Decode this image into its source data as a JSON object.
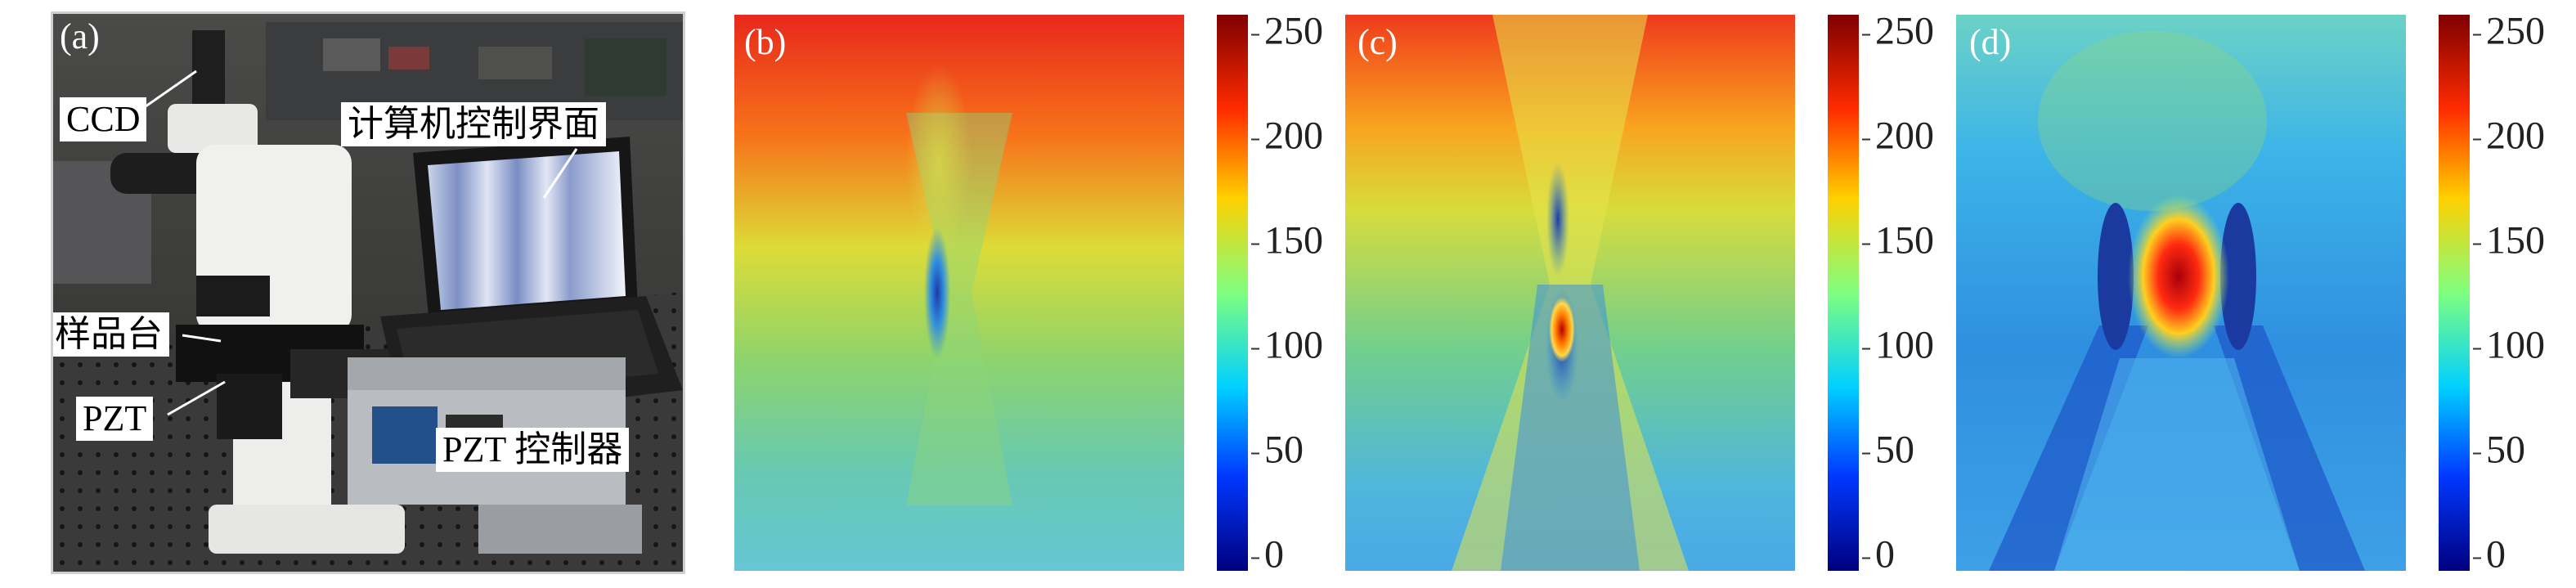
{
  "panel_a": {
    "label": "(a)",
    "annotations": {
      "ccd": "CCD",
      "computer": "计算机控制界面",
      "stage": "样品台",
      "pzt": "PZT",
      "pzt_controller": "PZT 控制器"
    }
  },
  "panels": [
    {
      "label": "(b)"
    },
    {
      "label": "(c)"
    },
    {
      "label": "(d)"
    }
  ],
  "colorbar": {
    "ticks": [
      "250",
      "200",
      "150",
      "100",
      "50",
      "0"
    ],
    "colors": [
      "#7f0000",
      "#ff2b00",
      "#ffd000",
      "#7fff7f",
      "#00d0ff",
      "#0038ff",
      "#00007f"
    ]
  }
}
